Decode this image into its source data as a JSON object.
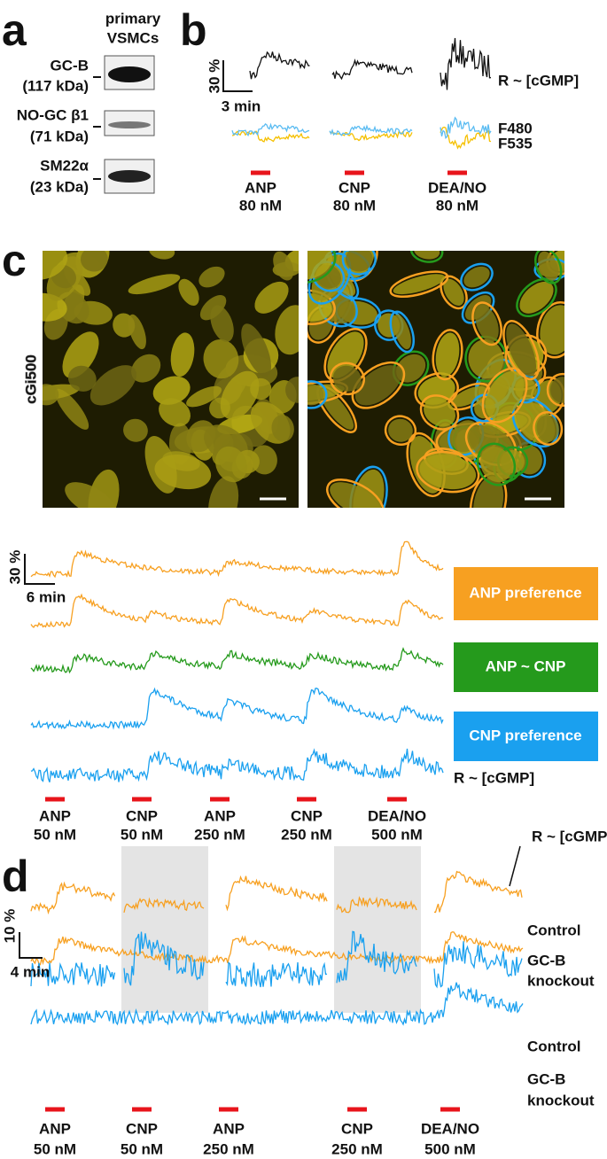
{
  "panel_a": {
    "letter": "a",
    "column_header": [
      "primary",
      "VSMCs"
    ],
    "bands": [
      {
        "lines": [
          "GC-B",
          "(117 kDa)"
        ]
      },
      {
        "lines": [
          "NO-GC β1",
          "(71 kDa)"
        ]
      },
      {
        "lines": [
          "SM22α",
          "(23 kDa)"
        ]
      }
    ]
  },
  "panel_b": {
    "letter": "b",
    "scale_y": "30 %",
    "scale_x": "3 min",
    "trace_labels": [
      "R ~ [cGMP]",
      "F480",
      "F535"
    ],
    "stimuli": [
      [
        "ANP",
        "80 nM"
      ],
      [
        "CNP",
        "80 nM"
      ],
      [
        "DEA/NO",
        "80 nM"
      ]
    ]
  },
  "panel_c": {
    "letter": "c",
    "image_label": "cGi500",
    "scale_y": "30 %",
    "scale_x": "6 min",
    "legend": [
      "ANP preference",
      "ANP ~ CNP",
      "CNP preference"
    ],
    "trace_label": "R ~ [cGMP]",
    "stimuli": [
      [
        "ANP",
        "50 nM"
      ],
      [
        "CNP",
        "50 nM"
      ],
      [
        "ANP",
        "250 nM"
      ],
      [
        "CNP",
        "250 nM"
      ],
      [
        "DEA/NO",
        "500 nM"
      ]
    ]
  },
  "panel_d": {
    "letter": "d",
    "scale_y": "10 %",
    "scale_x": "4 min",
    "trace_label": "R ~ [cGMP]",
    "row_labels": [
      [
        "Control"
      ],
      [
        "GC-B",
        "knockout"
      ],
      [
        "Control"
      ],
      [
        "GC-B",
        "knockout"
      ]
    ],
    "stimuli": [
      [
        "ANP",
        "50 nM"
      ],
      [
        "CNP",
        "50 nM"
      ],
      [
        "ANP",
        "250 nM"
      ],
      [
        "CNP",
        "250 nM"
      ],
      [
        "DEA/NO",
        "500 nM"
      ]
    ]
  }
}
